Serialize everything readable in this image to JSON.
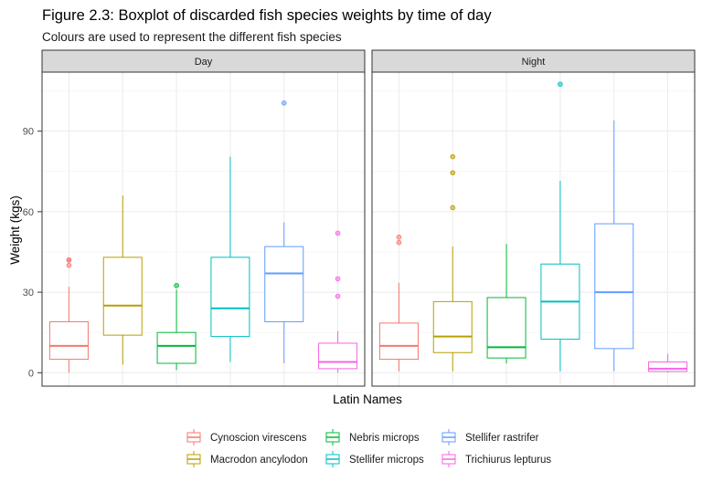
{
  "chart_data": {
    "type": "boxplot",
    "title": "Figure 2.3: Boxplot of discarded fish species weights by time of day",
    "subtitle": "Colours are used to represent the different fish species",
    "xlabel": "Latin Names",
    "ylabel": "Weight (kgs)",
    "ylim": [
      -5,
      112
    ],
    "yticks": [
      0,
      30,
      60,
      90
    ],
    "grid": true,
    "legend_position": "bottom",
    "series": [
      {
        "name": "Cynoscion virescens",
        "color": "#F8766D"
      },
      {
        "name": "Macrodon ancylodon",
        "color": "#B79F00"
      },
      {
        "name": "Nebris microps",
        "color": "#00BA38"
      },
      {
        "name": "Stellifer microps",
        "color": "#00BFC4"
      },
      {
        "name": "Stellifer rastrifer",
        "color": "#619CFF"
      },
      {
        "name": "Trichiurus lepturus",
        "color": "#F564E3"
      }
    ],
    "panels": [
      {
        "label": "Day",
        "boxes": [
          {
            "series": 0,
            "min": 0,
            "q1": 5,
            "median": 10,
            "q3": 19,
            "max": 32,
            "outliers": [
              40,
              42,
              42
            ]
          },
          {
            "series": 1,
            "min": 3,
            "q1": 14,
            "median": 25,
            "q3": 43,
            "max": 66,
            "outliers": []
          },
          {
            "series": 2,
            "min": 1,
            "q1": 3.5,
            "median": 10,
            "q3": 15,
            "max": 31,
            "outliers": [
              32.5
            ]
          },
          {
            "series": 3,
            "min": 4,
            "q1": 13.5,
            "median": 24,
            "q3": 43,
            "max": 80.5,
            "outliers": []
          },
          {
            "series": 4,
            "min": 3.5,
            "q1": 19,
            "median": 37,
            "q3": 47,
            "max": 56,
            "outliers": [
              100.5
            ]
          },
          {
            "series": 5,
            "min": 0,
            "q1": 1.5,
            "median": 4,
            "q3": 11,
            "max": 15.5,
            "outliers": [
              28.5,
              35,
              52
            ]
          }
        ]
      },
      {
        "label": "Night",
        "boxes": [
          {
            "series": 0,
            "min": 0.5,
            "q1": 5,
            "median": 10,
            "q3": 18.5,
            "max": 33.5,
            "outliers": [
              48.5,
              50.5
            ]
          },
          {
            "series": 1,
            "min": 0.5,
            "q1": 7.5,
            "median": 13.5,
            "q3": 26.5,
            "max": 47,
            "outliers": [
              61.5,
              74.5,
              80.5
            ]
          },
          {
            "series": 2,
            "min": 3.5,
            "q1": 5.5,
            "median": 9.5,
            "q3": 28,
            "max": 48,
            "outliers": []
          },
          {
            "series": 3,
            "min": 0.5,
            "q1": 12.5,
            "median": 26.5,
            "q3": 40.5,
            "max": 71.5,
            "outliers": [
              107.5
            ]
          },
          {
            "series": 4,
            "min": 0.5,
            "q1": 9,
            "median": 30,
            "q3": 55.5,
            "max": 94,
            "outliers": []
          },
          {
            "series": 5,
            "min": 0,
            "q1": 0.5,
            "median": 1.5,
            "q3": 4,
            "max": 7,
            "outliers": []
          }
        ]
      }
    ]
  }
}
